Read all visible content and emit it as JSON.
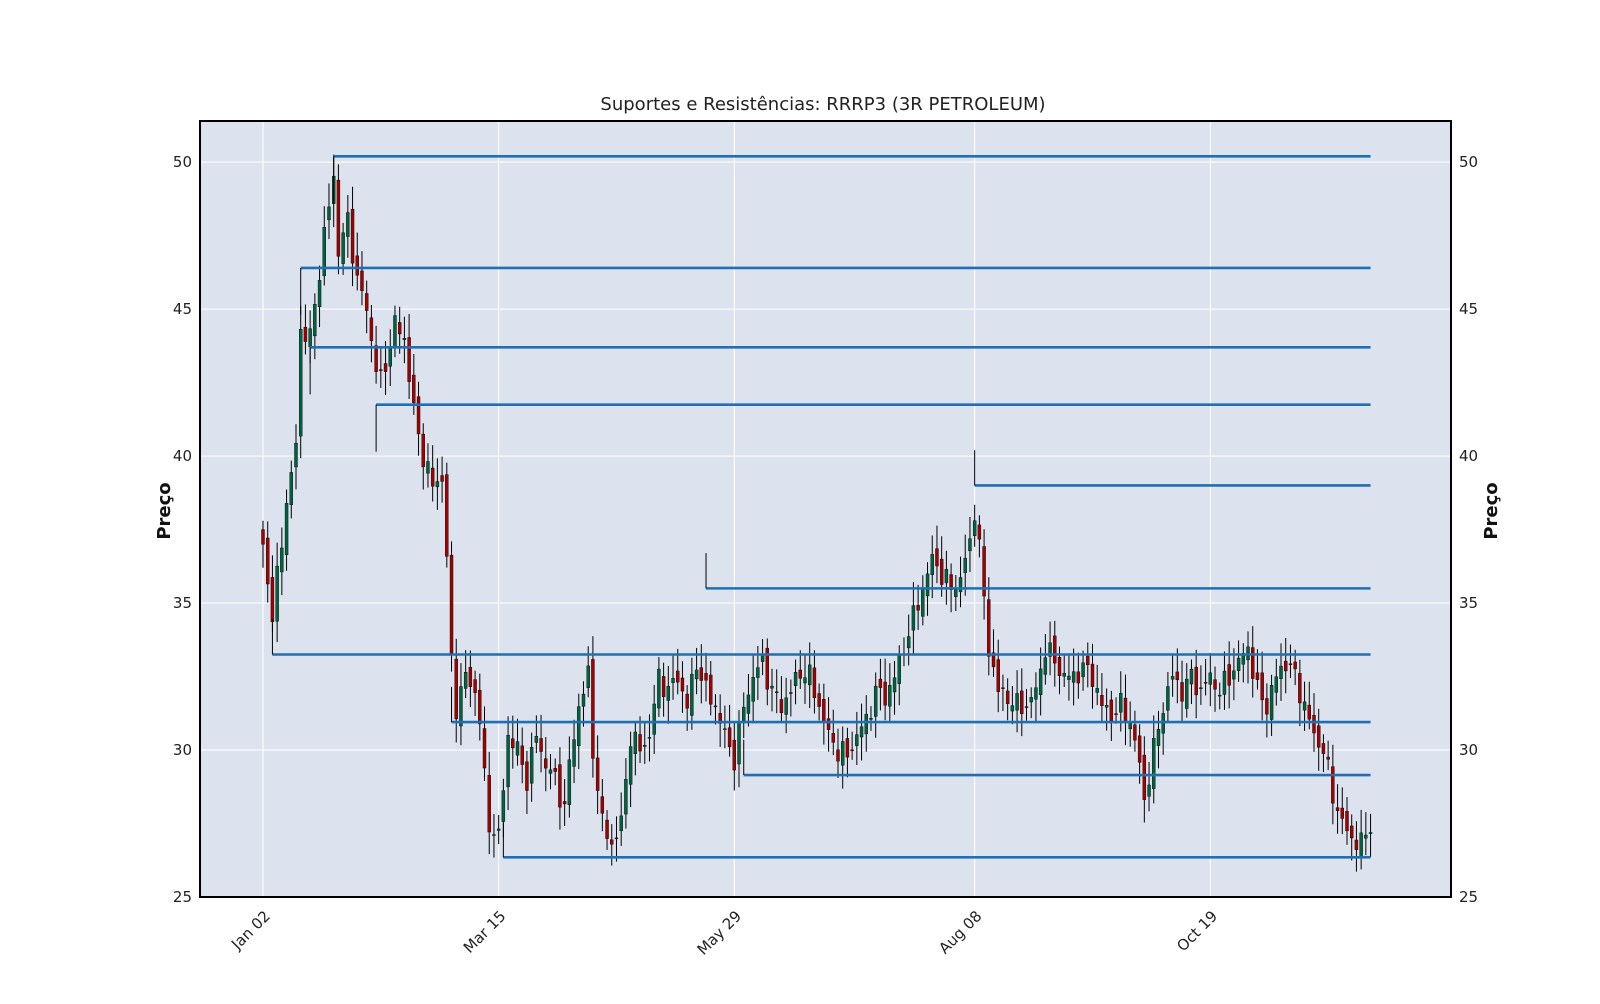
{
  "chart_data": {
    "type": "candlestick",
    "title": "Suportes e Resistências: RRRP3 (3R PETROLEUM)",
    "ylabel_left": "Preço",
    "ylabel_right": "Preço",
    "xlabel": "",
    "ylim": [
      25,
      51.4
    ],
    "y_ticks": [
      25,
      30,
      35,
      40,
      45,
      50
    ],
    "x_ticks": [
      {
        "label": "Jan 02",
        "index": 0
      },
      {
        "label": "Mar 15",
        "index": 50
      },
      {
        "label": "May 29",
        "index": 100
      },
      {
        "label": "Aug 08",
        "index": 151
      },
      {
        "label": "Oct 19",
        "index": 201
      }
    ],
    "grid": true,
    "colors": {
      "background": "#dce3ee",
      "grid": "#ffffff",
      "up": "#006340",
      "down": "#a30000",
      "wick": "#000000",
      "level": "#1f6fb2"
    },
    "keypoints": [
      [
        0,
        37.0
      ],
      [
        2,
        34.5
      ],
      [
        5,
        38.5
      ],
      [
        6,
        39.2
      ],
      [
        7,
        40.5
      ],
      [
        8,
        44.3
      ],
      [
        10,
        44.0
      ],
      [
        13,
        47.5
      ],
      [
        15,
        49.5
      ],
      [
        16,
        47.0
      ],
      [
        18,
        48.0
      ],
      [
        20,
        46.0
      ],
      [
        22,
        45.0
      ],
      [
        24,
        43.0
      ],
      [
        25,
        42.5
      ],
      [
        28,
        44.5
      ],
      [
        30,
        44.0
      ],
      [
        32,
        41.5
      ],
      [
        34,
        40.0
      ],
      [
        36,
        39.0
      ],
      [
        38,
        39.3
      ],
      [
        39,
        36.5
      ],
      [
        40,
        33.0
      ],
      [
        41,
        31.5
      ],
      [
        43,
        32.5
      ],
      [
        45,
        32.0
      ],
      [
        46,
        31.0
      ],
      [
        47,
        29.0
      ],
      [
        48,
        27.5
      ],
      [
        50,
        27.0
      ],
      [
        52,
        30.5
      ],
      [
        54,
        30.0
      ],
      [
        56,
        29.0
      ],
      [
        58,
        30.5
      ],
      [
        60,
        29.5
      ],
      [
        62,
        29.0
      ],
      [
        64,
        28.0
      ],
      [
        65,
        29.5
      ],
      [
        67,
        31.5
      ],
      [
        69,
        32.5
      ],
      [
        70,
        30.0
      ],
      [
        72,
        27.5
      ],
      [
        74,
        26.8
      ],
      [
        76,
        27.5
      ],
      [
        78,
        30.5
      ],
      [
        80,
        30.0
      ],
      [
        82,
        30.5
      ],
      [
        84,
        32.5
      ],
      [
        86,
        32.0
      ],
      [
        88,
        32.5
      ],
      [
        90,
        31.5
      ],
      [
        92,
        33.0
      ],
      [
        94,
        32.0
      ],
      [
        96,
        31.5
      ],
      [
        98,
        30.5
      ],
      [
        100,
        29.7
      ],
      [
        102,
        31.5
      ],
      [
        104,
        32.5
      ],
      [
        106,
        33.0
      ],
      [
        108,
        32.0
      ],
      [
        110,
        31.5
      ],
      [
        112,
        32.0
      ],
      [
        114,
        32.7
      ],
      [
        116,
        32.5
      ],
      [
        118,
        31.5
      ],
      [
        120,
        30.5
      ],
      [
        122,
        30.0
      ],
      [
        124,
        29.8
      ],
      [
        126,
        30.5
      ],
      [
        128,
        31.0
      ],
      [
        130,
        32.0
      ],
      [
        132,
        31.8
      ],
      [
        134,
        32.5
      ],
      [
        136,
        33.5
      ],
      [
        138,
        34.5
      ],
      [
        140,
        35.5
      ],
      [
        142,
        36.5
      ],
      [
        144,
        36.0
      ],
      [
        146,
        35.5
      ],
      [
        148,
        35.8
      ],
      [
        149,
        36.5
      ],
      [
        150,
        37.0
      ],
      [
        151,
        38.2
      ],
      [
        152,
        37.0
      ],
      [
        153,
        35.0
      ],
      [
        154,
        33.5
      ],
      [
        156,
        32.0
      ],
      [
        158,
        31.8
      ],
      [
        160,
        31.5
      ],
      [
        162,
        31.5
      ],
      [
        164,
        32.0
      ],
      [
        166,
        33.5
      ],
      [
        168,
        33.0
      ],
      [
        170,
        32.5
      ],
      [
        172,
        32.5
      ],
      [
        174,
        32.8
      ],
      [
        176,
        32.5
      ],
      [
        178,
        31.5
      ],
      [
        180,
        31.2
      ],
      [
        182,
        31.5
      ],
      [
        184,
        31.0
      ],
      [
        186,
        29.5
      ],
      [
        187,
        28.3
      ],
      [
        189,
        30.0
      ],
      [
        191,
        31.5
      ],
      [
        193,
        32.5
      ],
      [
        195,
        32.0
      ],
      [
        197,
        32.5
      ],
      [
        199,
        32.0
      ],
      [
        201,
        32.5
      ],
      [
        203,
        32.0
      ],
      [
        205,
        32.5
      ],
      [
        207,
        33.0
      ],
      [
        209,
        33.5
      ],
      [
        211,
        32.0
      ],
      [
        213,
        31.5
      ],
      [
        215,
        32.5
      ],
      [
        217,
        33.0
      ],
      [
        219,
        32.5
      ],
      [
        221,
        31.5
      ],
      [
        223,
        30.5
      ],
      [
        225,
        30.0
      ],
      [
        227,
        28.5
      ],
      [
        229,
        27.5
      ],
      [
        231,
        27.0
      ],
      [
        233,
        26.8
      ],
      [
        235,
        27.5
      ]
    ],
    "levels": [
      {
        "value": 50.2,
        "start": 15
      },
      {
        "value": 46.4,
        "start": 8
      },
      {
        "value": 43.7,
        "start": 10
      },
      {
        "value": 41.75,
        "start": 24
      },
      {
        "value": 39.0,
        "start": 151
      },
      {
        "value": 35.5,
        "start": 94
      },
      {
        "value": 33.25,
        "start": 2
      },
      {
        "value": 30.95,
        "start": 40
      },
      {
        "value": 29.15,
        "start": 102
      },
      {
        "value": 26.35,
        "start": 51
      }
    ]
  }
}
